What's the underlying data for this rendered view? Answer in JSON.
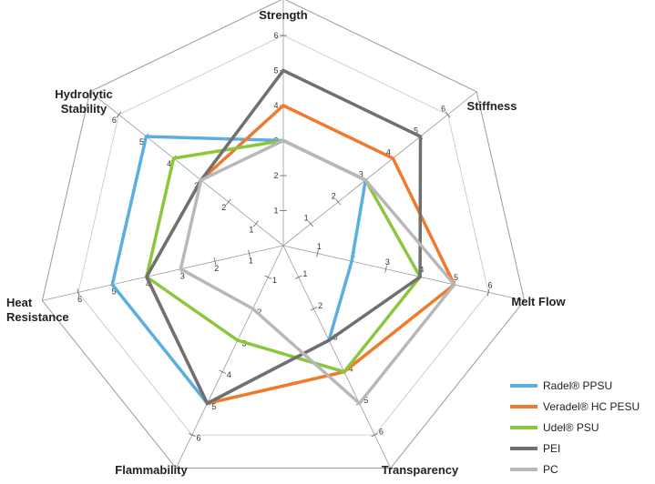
{
  "chart_data": {
    "type": "radar",
    "axes": [
      "Strength",
      "Stiffness",
      "Melt Flow",
      "Transparency",
      "Flammability",
      "Heat Resistance",
      "Hydrolytic Stability"
    ],
    "axis_label_lines": [
      [
        "Strength"
      ],
      [
        "Stiffness"
      ],
      [
        "Melt Flow"
      ],
      [
        "Transparency"
      ],
      [
        "Flammability"
      ],
      [
        "Heat",
        "Resistance"
      ],
      [
        "Hydrolytic",
        "Stability"
      ]
    ],
    "ticks": [
      1,
      2,
      3,
      4,
      5,
      6
    ],
    "range": [
      0,
      6
    ],
    "grid": true,
    "legend_position": "bottom-right",
    "series": [
      {
        "name": "Radel® PPSU",
        "color": "#5aaee0",
        "values": [
          3,
          3,
          2,
          3,
          5,
          5,
          5
        ]
      },
      {
        "name": "Veradel® HC PESU",
        "color": "#ef7a2d",
        "values": [
          4,
          4,
          5,
          4,
          5,
          4,
          3
        ]
      },
      {
        "name": "Udel® PSU",
        "color": "#8cc63f",
        "values": [
          3,
          3,
          4,
          4,
          3,
          4,
          4
        ]
      },
      {
        "name": "PEI",
        "color": "#707070",
        "values": [
          5,
          5,
          4,
          3,
          5,
          4,
          3
        ]
      },
      {
        "name": "PC",
        "color": "#b8b8b8",
        "values": [
          3,
          3,
          5,
          5,
          2,
          3,
          3
        ]
      }
    ]
  }
}
